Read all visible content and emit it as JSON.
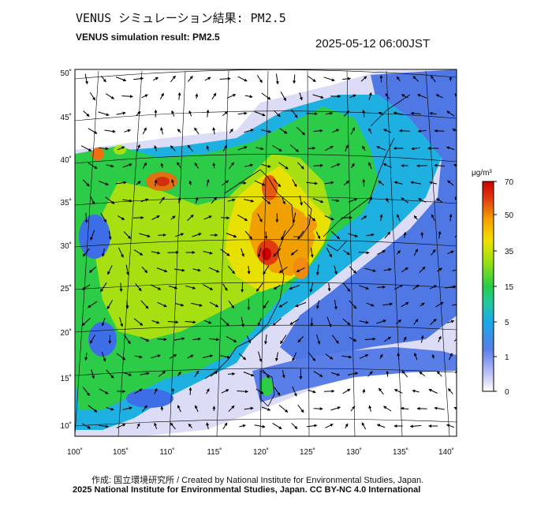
{
  "header": {
    "title_jp": "VENUS シミュレーション結果: PM2.5",
    "title_en": "VENUS simulation result: PM2.5",
    "timestamp": "2025-05-12 06:00JST"
  },
  "map": {
    "lat_labels": [
      "50˚",
      "45˚",
      "40˚",
      "35˚",
      "30˚",
      "25˚",
      "20˚",
      "15˚",
      "10˚"
    ],
    "lon_labels": [
      "100˚",
      "105˚",
      "110˚",
      "115˚",
      "120˚",
      "125˚",
      "130˚",
      "135˚",
      "140˚"
    ]
  },
  "colorbar": {
    "unit": "μg/m³",
    "ticks": [
      "70",
      "50",
      "35",
      "15",
      "5",
      "1",
      "0"
    ],
    "colors": [
      "#ffffff",
      "#9aa0f0",
      "#3d6ee8",
      "#1fb4e0",
      "#27cc4a",
      "#9ee012",
      "#f0e000",
      "#f5a000",
      "#e03a10",
      "#cc0000"
    ]
  },
  "footer": {
    "credit": "作成: 国立環境研究所 / Created by National Institute for Environmental Studies, Japan.",
    "copyright": "2025 National Institute for Environmental Studies, Japan. CC BY-NC 4.0 International"
  }
}
